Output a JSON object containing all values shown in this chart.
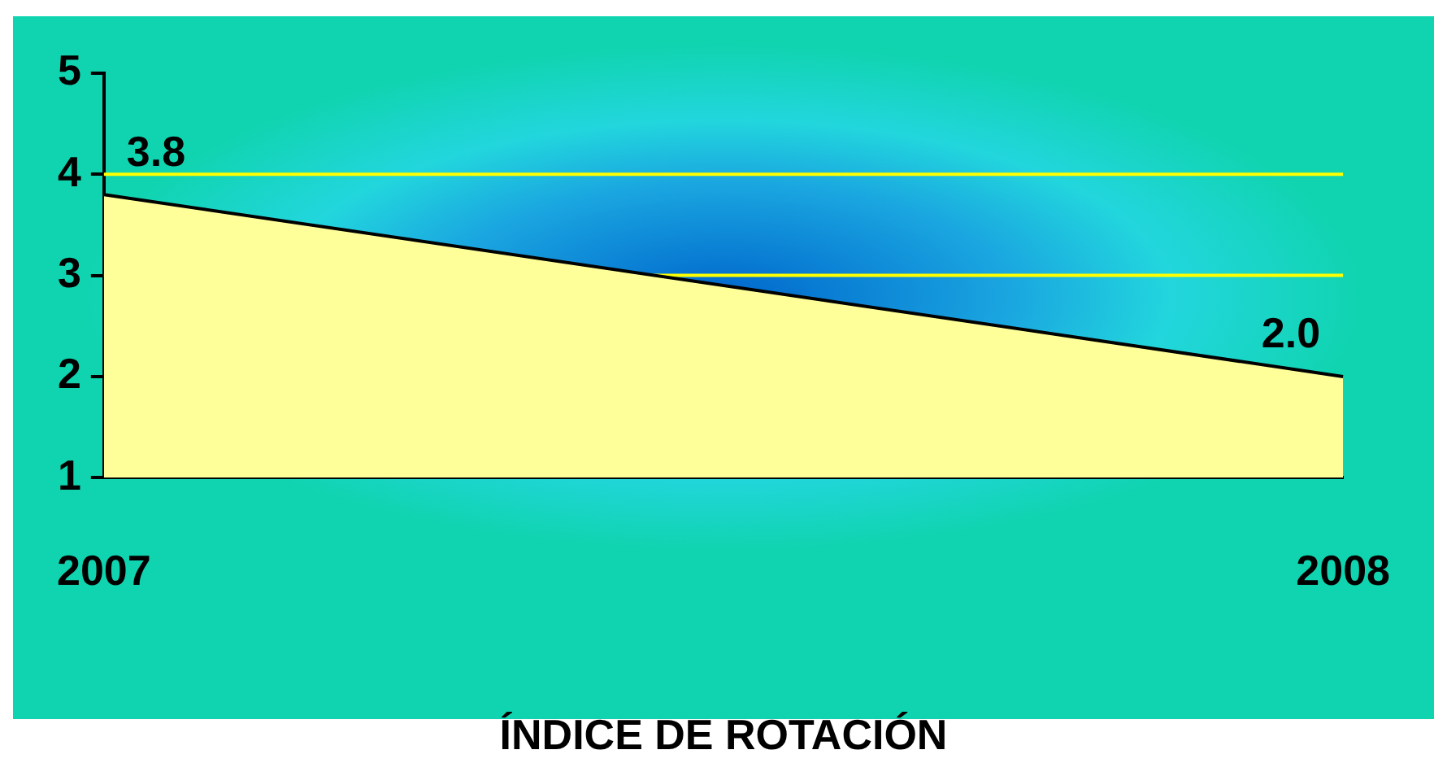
{
  "chart_data": {
    "type": "area",
    "xlabel": "ÍNDICE DE ROTACIÓN",
    "categories": [
      "2007",
      "2008"
    ],
    "series": [
      {
        "color": "#ffff99",
        "values": [
          3.8,
          2.0
        ],
        "value_labels": [
          "3.8",
          "2.0"
        ]
      }
    ],
    "ylim": [
      1,
      5
    ],
    "yticks": [
      1,
      2,
      3,
      4,
      5
    ],
    "ref_lines": [
      {
        "axis": "y",
        "value": 3,
        "color": "#ffff00"
      },
      {
        "axis": "y",
        "value": 4,
        "color": "#ffff00"
      }
    ],
    "legend": false,
    "marker": "none"
  }
}
